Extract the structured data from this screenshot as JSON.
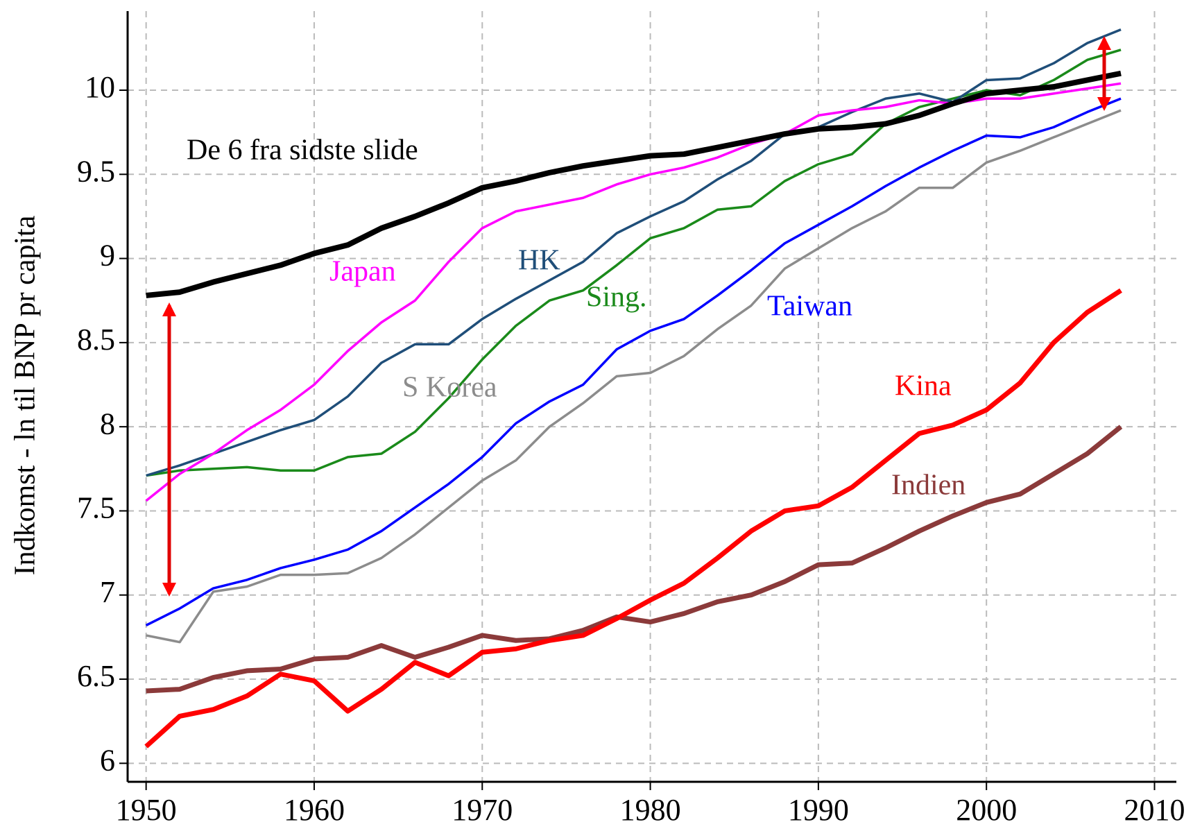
{
  "chart_data": {
    "type": "line",
    "ylabel": "Indkomst - ln til BNP pr capita",
    "x": [
      1950,
      1952,
      1954,
      1956,
      1958,
      1960,
      1962,
      1964,
      1966,
      1968,
      1970,
      1972,
      1974,
      1976,
      1978,
      1980,
      1982,
      1984,
      1986,
      1988,
      1990,
      1992,
      1994,
      1996,
      1998,
      2000,
      2002,
      2004,
      2006,
      2008
    ],
    "series": [
      {
        "name": "De 6 fra sidste slide",
        "color": "#000000",
        "width": 8,
        "values": [
          8.78,
          8.8,
          8.86,
          8.91,
          8.96,
          9.03,
          9.08,
          9.18,
          9.25,
          9.33,
          9.42,
          9.46,
          9.51,
          9.55,
          9.58,
          9.61,
          9.62,
          9.66,
          9.7,
          9.74,
          9.77,
          9.78,
          9.8,
          9.85,
          9.92,
          9.98,
          10.0,
          10.02,
          10.06,
          10.1
        ]
      },
      {
        "name": "Japan",
        "color": "#ff00ff",
        "width": 3.5,
        "values": [
          7.56,
          7.72,
          7.84,
          7.98,
          8.1,
          8.25,
          8.45,
          8.62,
          8.75,
          8.98,
          9.18,
          9.28,
          9.32,
          9.36,
          9.44,
          9.5,
          9.54,
          9.6,
          9.68,
          9.74,
          9.85,
          9.88,
          9.9,
          9.94,
          9.92,
          9.95,
          9.95,
          9.98,
          10.01,
          10.04
        ]
      },
      {
        "name": "HK",
        "color": "#1f4e79",
        "width": 3.5,
        "values": [
          7.71,
          7.77,
          7.84,
          7.91,
          7.98,
          8.04,
          8.18,
          8.38,
          8.49,
          8.49,
          8.64,
          8.76,
          8.87,
          8.98,
          9.15,
          9.25,
          9.34,
          9.47,
          9.58,
          9.74,
          9.78,
          9.87,
          9.95,
          9.98,
          9.93,
          10.06,
          10.07,
          10.16,
          10.28,
          10.36
        ]
      },
      {
        "name": "Sing.",
        "color": "#1a8a1a",
        "width": 3.5,
        "values": [
          7.71,
          7.74,
          7.75,
          7.76,
          7.74,
          7.74,
          7.82,
          7.84,
          7.97,
          8.17,
          8.4,
          8.6,
          8.75,
          8.81,
          8.96,
          9.12,
          9.18,
          9.29,
          9.31,
          9.46,
          9.56,
          9.62,
          9.8,
          9.9,
          9.95,
          10.0,
          9.97,
          10.06,
          10.18,
          10.24
        ]
      },
      {
        "name": "Taiwan",
        "color": "#0000ff",
        "width": 3.5,
        "values": [
          6.82,
          6.92,
          7.04,
          7.09,
          7.16,
          7.21,
          7.27,
          7.38,
          7.52,
          7.66,
          7.82,
          8.02,
          8.15,
          8.25,
          8.46,
          8.57,
          8.64,
          8.78,
          8.93,
          9.09,
          9.2,
          9.31,
          9.43,
          9.54,
          9.64,
          9.73,
          9.72,
          9.78,
          9.87,
          9.95
        ]
      },
      {
        "name": "S Korea",
        "color": "#8c8c8c",
        "width": 3.5,
        "values": [
          6.76,
          6.72,
          7.02,
          7.05,
          7.12,
          7.12,
          7.13,
          7.22,
          7.36,
          7.52,
          7.68,
          7.8,
          8.0,
          8.14,
          8.3,
          8.32,
          8.42,
          8.58,
          8.72,
          8.94,
          9.06,
          9.18,
          9.28,
          9.42,
          9.42,
          9.57,
          9.64,
          9.72,
          9.8,
          9.88
        ]
      },
      {
        "name": "Kina",
        "color": "#ff0000",
        "width": 7,
        "values": [
          6.1,
          6.28,
          6.32,
          6.4,
          6.53,
          6.49,
          6.31,
          6.44,
          6.6,
          6.52,
          6.66,
          6.68,
          6.73,
          6.76,
          6.86,
          6.97,
          7.07,
          7.22,
          7.38,
          7.5,
          7.53,
          7.64,
          7.8,
          7.96,
          8.01,
          8.1,
          8.26,
          8.5,
          8.68,
          8.81
        ]
      },
      {
        "name": "Indien",
        "color": "#8b3a3a",
        "width": 7,
        "values": [
          6.43,
          6.44,
          6.51,
          6.55,
          6.56,
          6.62,
          6.63,
          6.7,
          6.63,
          6.69,
          6.76,
          6.73,
          6.74,
          6.79,
          6.87,
          6.84,
          6.89,
          6.96,
          7.0,
          7.08,
          7.18,
          7.19,
          7.28,
          7.38,
          7.47,
          7.55,
          7.6,
          7.72,
          7.84,
          8.0
        ]
      }
    ],
    "xlim": [
      1948.9,
      2011.3
    ],
    "ylim": [
      5.89,
      10.47
    ],
    "xticks": [
      1950,
      1960,
      1970,
      1980,
      1990,
      2000,
      2010
    ],
    "yticks": [
      6,
      6.5,
      7,
      7.5,
      8,
      8.5,
      9,
      9.5,
      10
    ],
    "grid": true
  }
}
